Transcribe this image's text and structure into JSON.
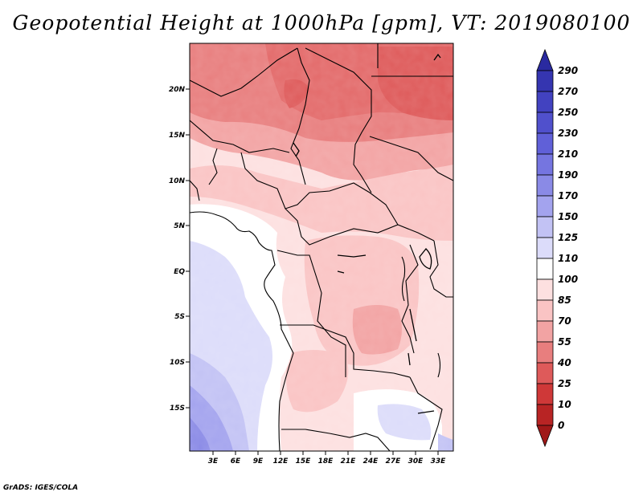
{
  "title": "Geopotential Height at 1000hPa [gpm], VT: 2019080100",
  "credit": "GrADS: IGES/COLA",
  "map": {
    "variable": "Geopotential Height at 1000hPa",
    "units": "gpm",
    "valid_time": "2019080100",
    "lat_labels": [
      "20N",
      "15N",
      "10N",
      "5N",
      "EQ",
      "5S",
      "10S",
      "15S"
    ],
    "lon_labels": [
      "3E",
      "6E",
      "9E",
      "12E",
      "15E",
      "18E",
      "21E",
      "24E",
      "27E",
      "30E",
      "33E"
    ]
  },
  "legend": {
    "levels": [
      "290",
      "270",
      "250",
      "230",
      "210",
      "190",
      "170",
      "150",
      "125",
      "110",
      "100",
      "85",
      "70",
      "55",
      "40",
      "25",
      "10",
      "0"
    ],
    "colors": [
      "#2a2aa0",
      "#3535b0",
      "#4242c0",
      "#5050cc",
      "#6060d8",
      "#7575e0",
      "#8a8ae6",
      "#a3a3ee",
      "#c2c2f4",
      "#dcdcfa",
      "#ffffff",
      "#fde0e0",
      "#fac4c4",
      "#f2a3a3",
      "#e87e7e",
      "#de5a5a",
      "#cf3838",
      "#b82424",
      "#a01818"
    ]
  }
}
